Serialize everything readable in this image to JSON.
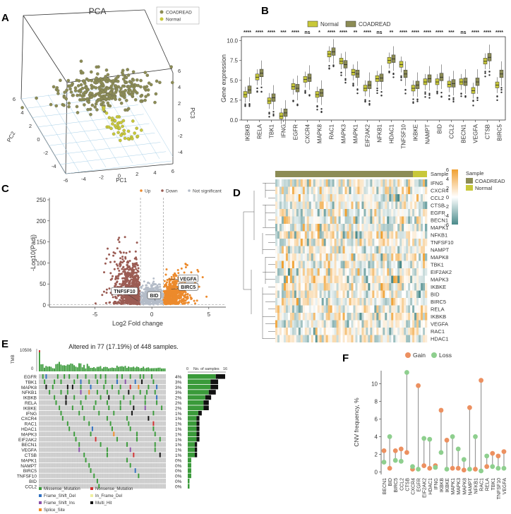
{
  "panel_letters": [
    "A",
    "B",
    "C",
    "D",
    "E",
    "F"
  ],
  "colors": {
    "coadread": "#8c8c55",
    "normal": "#c8c83a",
    "up": "#ec8a2c",
    "down": "#9b5c54",
    "ns": "#b4bcc8",
    "gain": "#ec9060",
    "loss": "#8ecf8e",
    "heat_high": "#f0a030",
    "heat_low": "#4a8a8a",
    "grey_cell": "#cccccc"
  },
  "chart_data": [
    {
      "panel": "A",
      "type": "scatter",
      "title": "PCA",
      "xlabel": "PC1",
      "ylabel": "PC2",
      "zlabel": "PC3",
      "x_ticks": [
        "-6",
        "-4",
        "-2",
        "0",
        "2",
        "4",
        "6"
      ],
      "y_ticks": [
        "6",
        "4",
        "2",
        "0",
        "-2",
        "-4"
      ],
      "z_ticks": [
        "6",
        "4",
        "2",
        "0",
        "-2",
        "-4"
      ],
      "legend": [
        "COADREAD",
        "Normal"
      ],
      "groups": [
        {
          "name": "COADREAD",
          "n": 300,
          "center_pc1": 0.5,
          "center_pc2": 0,
          "center_pc3": 2
        },
        {
          "name": "Normal",
          "n": 45,
          "center_pc1": 1.5,
          "center_pc2": 1,
          "center_pc3": -2
        }
      ]
    },
    {
      "panel": "B",
      "type": "box",
      "ylabel": "Gene expression",
      "ylim": [
        0,
        10.5
      ],
      "y_ticks": [
        "0.0",
        "2.5",
        "5.0",
        "7.5",
        "10.0"
      ],
      "legend": [
        "Normal",
        "COADREAD"
      ],
      "categories": [
        "IKBKB",
        "RELA",
        "TBK1",
        "IFNG",
        "EGFR",
        "CXCR4",
        "MAPK8",
        "RAC1",
        "MAPK3",
        "MAPK1",
        "EIF2AK2",
        "NFKB1",
        "HDAC1",
        "TNFSF10",
        "IKBKE",
        "NAMPT",
        "BID",
        "CCL2",
        "BECN1",
        "VEGFA",
        "CTSB",
        "BIRC5"
      ],
      "significance": [
        "****",
        "****",
        "****",
        "***",
        "****",
        "ns",
        "*",
        "****",
        "****",
        "**",
        "****",
        "ns",
        "**",
        "****",
        "****",
        "****",
        "****",
        "***",
        "ns",
        "****",
        "****",
        "****"
      ],
      "series": [
        {
          "name": "Normal",
          "medians": [
            3.2,
            5.4,
            2.4,
            0.5,
            4.2,
            5.1,
            3.2,
            8.3,
            7.4,
            6.0,
            4.0,
            5.2,
            7.5,
            7.0,
            4.0,
            4.8,
            4.8,
            4.5,
            4.8,
            3.7,
            7.4,
            4.4
          ]
        },
        {
          "name": "COADREAD",
          "medians": [
            3.8,
            5.9,
            2.8,
            0.9,
            4.0,
            5.3,
            3.4,
            8.6,
            7.0,
            5.8,
            4.4,
            5.3,
            7.7,
            5.8,
            4.4,
            5.2,
            5.4,
            4.6,
            4.8,
            4.8,
            7.9,
            5.8
          ]
        }
      ]
    },
    {
      "panel": "C",
      "type": "scatter",
      "xlabel": "Log2 Fold change",
      "ylabel": "-Log10(Padj)",
      "xlim": [
        -9,
        6.5
      ],
      "ylim": [
        -5,
        255
      ],
      "x_ticks": [
        "-5",
        "0",
        "5"
      ],
      "y_ticks": [
        "0",
        "50",
        "100",
        "150",
        "200",
        "250"
      ],
      "legend": [
        "Up",
        "Down",
        "Not significant"
      ],
      "labels": [
        "TNFSF10",
        "BID",
        "VEGFA",
        "BIRC5"
      ],
      "fc_threshold": 1,
      "padj_threshold": 1.3
    },
    {
      "panel": "D",
      "type": "heatmap",
      "rows": [
        "IFNG",
        "CXCR4",
        "CCL2",
        "CTSB",
        "EGFR",
        "BECN1",
        "MAPK1",
        "NFKB1",
        "TNFSF10",
        "NAMPT",
        "MAPK8",
        "TBK1",
        "EIF2AK2",
        "MAPK3",
        "IKBKE",
        "BID",
        "BIRC5",
        "RELA",
        "IKBKB",
        "VEGFA",
        "RAC1",
        "HDAC1"
      ],
      "annotation_label": "Sample",
      "annotation_groups": [
        "COADREAD",
        "Normal"
      ],
      "scale_ticks": [
        "6",
        "4",
        "2",
        "0",
        "-2",
        "-4",
        "-6"
      ],
      "vmin": -6,
      "vmax": 6
    },
    {
      "panel": "E",
      "type": "oncoplot",
      "title": "Altered in 77 (17.19%) of 448 samples.",
      "tmb_label": "TMB",
      "tmb_max": "10506",
      "tmb_min": "0",
      "samples_label": "No. of samples",
      "samples_axis": [
        "0",
        "16"
      ],
      "genes": [
        "EGFR",
        "TBK1",
        "MAPK8",
        "NFKB1",
        "IKBKB",
        "RELA",
        "IKBKE",
        "IFNG",
        "CXCR4",
        "RAC1",
        "HDAC1",
        "MAPK3",
        "EIF2AK2",
        "BECN1",
        "VEGFA",
        "CTSB",
        "MAPK1",
        "NAMPT",
        "BIRC5",
        "TNFSF10",
        "BID",
        "CCL2"
      ],
      "percent": [
        "4%",
        "3%",
        "3%",
        "3%",
        "2%",
        "2%",
        "2%",
        "1%",
        "1%",
        "1%",
        "1%",
        "1%",
        "1%",
        "1%",
        "1%",
        "1%",
        "0%",
        "0%",
        "0%",
        "0%",
        "0%",
        "0%"
      ],
      "counts": [
        16,
        13,
        13,
        12,
        10,
        9,
        9,
        6,
        5,
        5,
        5,
        5,
        5,
        4,
        4,
        4,
        2,
        2,
        2,
        2,
        1,
        1
      ],
      "legend": [
        "Missense_Mutation",
        "Nonsense_Mutation",
        "Frame_Shift_Del",
        "In_Frame_Del",
        "Frame_Shift_Ins",
        "Multi_Hit",
        "Splice_Site"
      ],
      "legend_colors": [
        "#3a9a3a",
        "#d03030",
        "#3070c0",
        "#f0f0a0",
        "#8a50a8",
        "#111111",
        "#f08c28"
      ]
    },
    {
      "panel": "F",
      "type": "lollipop",
      "ylabel": "CNV frequency, %",
      "ylim": [
        -0.3,
        11.5
      ],
      "y_ticks": [
        "0",
        "2",
        "4",
        "6",
        "8",
        "10"
      ],
      "legend": [
        "Gain",
        "Loss"
      ],
      "categories": [
        "BECN1",
        "BID",
        "BIRC5",
        "CCL2",
        "CTSB",
        "CXCR4",
        "EGFR",
        "EIF2AK2",
        "HDAC1",
        "IFNG",
        "IKBKB",
        "IKBKE",
        "MAPK1",
        "MAPK3",
        "MAPK8",
        "NAMPT",
        "NFKB1",
        "RAC1",
        "RELA",
        "TBK1",
        "TNFSF10",
        "VEGFA"
      ],
      "series": [
        {
          "name": "Gain",
          "values": [
            2.4,
            0.4,
            2.4,
            2.6,
            2.2,
            0.3,
            9.8,
            0.7,
            0.4,
            0.7,
            7.0,
            3.6,
            0.4,
            0.4,
            0.2,
            7.3,
            0.3,
            10.4,
            0.6,
            2.1,
            1.8,
            2.3
          ]
        },
        {
          "name": "Loss",
          "values": [
            1.1,
            4.0,
            1.3,
            1.2,
            11.3,
            0.6,
            0.3,
            3.8,
            3.7,
            0.5,
            2.2,
            0.3,
            4.0,
            2.6,
            1.4,
            0.3,
            4.0,
            0.1,
            1.8,
            0.6,
            0.4,
            0.4
          ]
        }
      ]
    }
  ]
}
